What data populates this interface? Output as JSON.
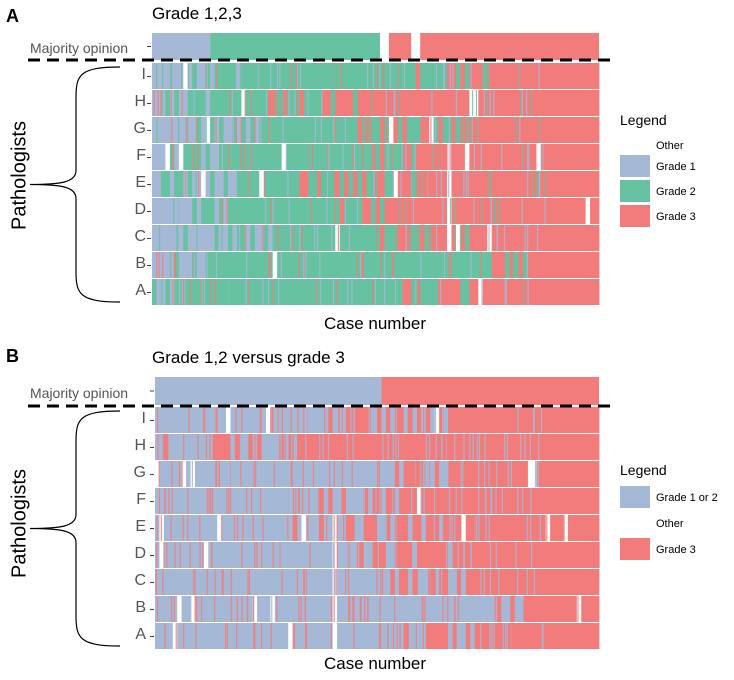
{
  "chart_data": [
    {
      "type": "heatmap",
      "panel_label": "A",
      "title": "Grade 1,2,3",
      "xlabel": "Case number",
      "ylabel": "Pathologists",
      "majority_label": "Majority opinion",
      "rows": [
        "I",
        "H",
        "G",
        "F",
        "E",
        "D",
        "C",
        "B",
        "A"
      ],
      "legend": {
        "title": "Legend",
        "entries": [
          {
            "label": "Other",
            "color": "#FFFFFF"
          },
          {
            "label": "Grade 1",
            "color": "#A5B8D6"
          },
          {
            "label": "Grade 2",
            "color": "#66C2A0"
          },
          {
            "label": "Grade 3",
            "color": "#F27C7C"
          }
        ]
      },
      "majority_opinion_segments": [
        {
          "start": 0,
          "end": 13,
          "category": "Grade 1"
        },
        {
          "start": 13,
          "end": 51,
          "category": "Grade 2"
        },
        {
          "start": 51,
          "end": 53,
          "category": "Other"
        },
        {
          "start": 53,
          "end": 58,
          "category": "Grade 3"
        },
        {
          "start": 58,
          "end": 60,
          "category": "Other"
        },
        {
          "start": 60,
          "end": 100,
          "category": "Grade 3"
        }
      ],
      "row_profiles": {
        "I": {
          "g1_end": 14,
          "g2_end": 68,
          "spread": 10
        },
        "H": {
          "g1_end": 6,
          "g2_end": 38,
          "spread": 14
        },
        "G": {
          "g1_end": 18,
          "g2_end": 58,
          "spread": 14
        },
        "F": {
          "g1_end": 12,
          "g2_end": 52,
          "spread": 14
        },
        "E": {
          "g1_end": 8,
          "g2_end": 45,
          "spread": 14
        },
        "D": {
          "g1_end": 12,
          "g2_end": 45,
          "spread": 10
        },
        "C": {
          "g1_end": 18,
          "g2_end": 60,
          "spread": 14
        },
        "B": {
          "g1_end": 10,
          "g2_end": 78,
          "spread": 8
        },
        "A": {
          "g1_end": 4,
          "g2_end": 63,
          "spread": 12
        }
      }
    },
    {
      "type": "heatmap",
      "panel_label": "B",
      "title": "Grade 1,2 versus grade 3",
      "xlabel": "Case number",
      "ylabel": "Pathologists",
      "majority_label": "Majority opinion",
      "rows": [
        "I",
        "H",
        "G",
        "F",
        "E",
        "D",
        "C",
        "B",
        "A"
      ],
      "legend": {
        "title": "Legend",
        "entries": [
          {
            "label": "Grade 1 or 2",
            "color": "#A5B8D6"
          },
          {
            "label": "Other",
            "color": "#FFFFFF"
          },
          {
            "label": "Grade 3",
            "color": "#F27C7C"
          }
        ]
      },
      "majority_opinion_segments": [
        {
          "start": 0,
          "end": 51,
          "category": "Grade 1 or 2"
        },
        {
          "start": 51,
          "end": 100,
          "category": "Grade 3"
        }
      ],
      "row_profiles": {
        "I": {
          "g2_end": 52,
          "spread": 18
        },
        "H": {
          "g2_end": 20,
          "spread": 30
        },
        "G": {
          "g2_end": 58,
          "spread": 12
        },
        "F": {
          "g2_end": 45,
          "spread": 22
        },
        "E": {
          "g2_end": 48,
          "spread": 20
        },
        "D": {
          "g2_end": 48,
          "spread": 20
        },
        "C": {
          "g2_end": 62,
          "spread": 12
        },
        "B": {
          "g2_end": 78,
          "spread": 8
        },
        "A": {
          "g2_end": 63,
          "spread": 12
        }
      }
    }
  ]
}
